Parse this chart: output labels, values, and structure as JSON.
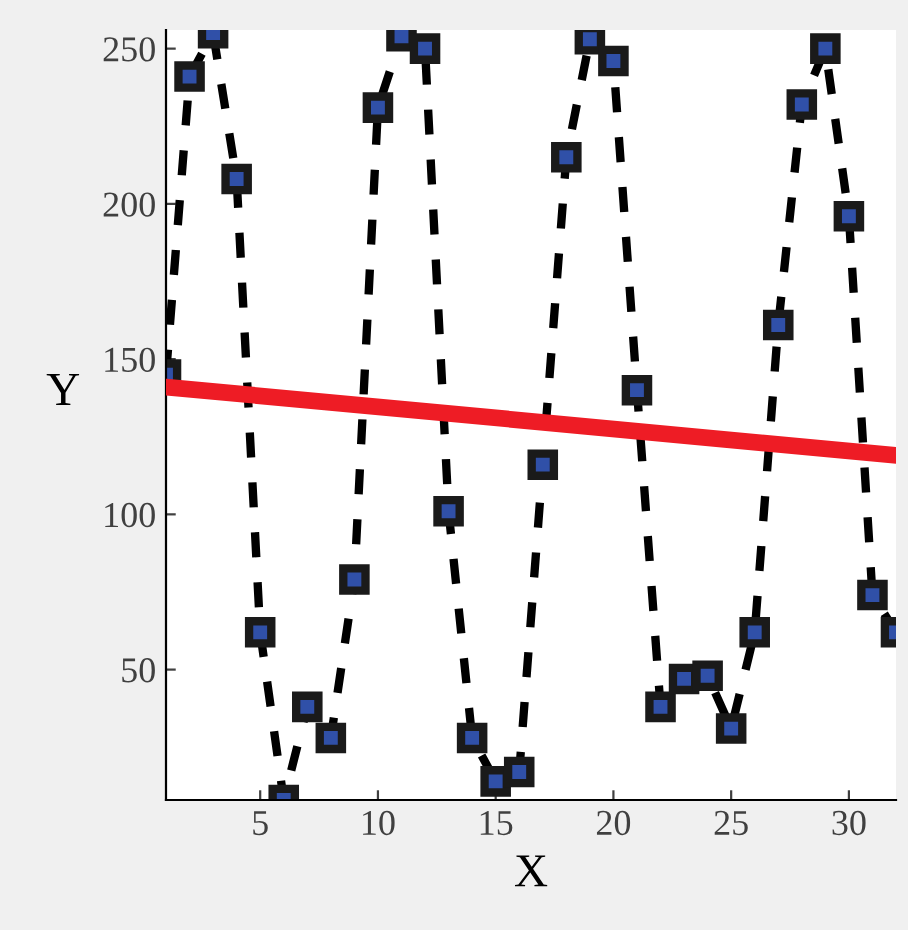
{
  "chart_data": {
    "type": "line",
    "xlabel": "X",
    "ylabel": "Y",
    "xlim": [
      1,
      32
    ],
    "ylim": [
      8,
      256
    ],
    "xticks": [
      5,
      10,
      15,
      20,
      25,
      30
    ],
    "yticks": [
      50,
      100,
      150,
      200,
      250
    ],
    "grid": false,
    "series": [
      {
        "color": "#000000",
        "marker": "square",
        "line_style": "dashed",
        "x": [
          1,
          2,
          3,
          4,
          5,
          6,
          7,
          8,
          9,
          10,
          11,
          12,
          13,
          14,
          15,
          16,
          17,
          18,
          19,
          20,
          21,
          22,
          23,
          24,
          25,
          26,
          27,
          28,
          29,
          30,
          31,
          32
        ],
        "values": [
          145,
          241,
          255,
          208,
          62,
          8,
          38,
          28,
          79,
          231,
          254,
          250,
          101,
          28,
          14,
          17,
          116,
          215,
          253,
          246,
          140,
          38,
          47,
          48,
          31,
          62,
          161,
          232,
          250,
          196,
          74,
          62
        ]
      },
      {
        "color": "#ee1c25",
        "marker": "none",
        "line_style": "solid",
        "x": [
          1,
          32
        ],
        "values": [
          141,
          119
        ]
      }
    ]
  }
}
